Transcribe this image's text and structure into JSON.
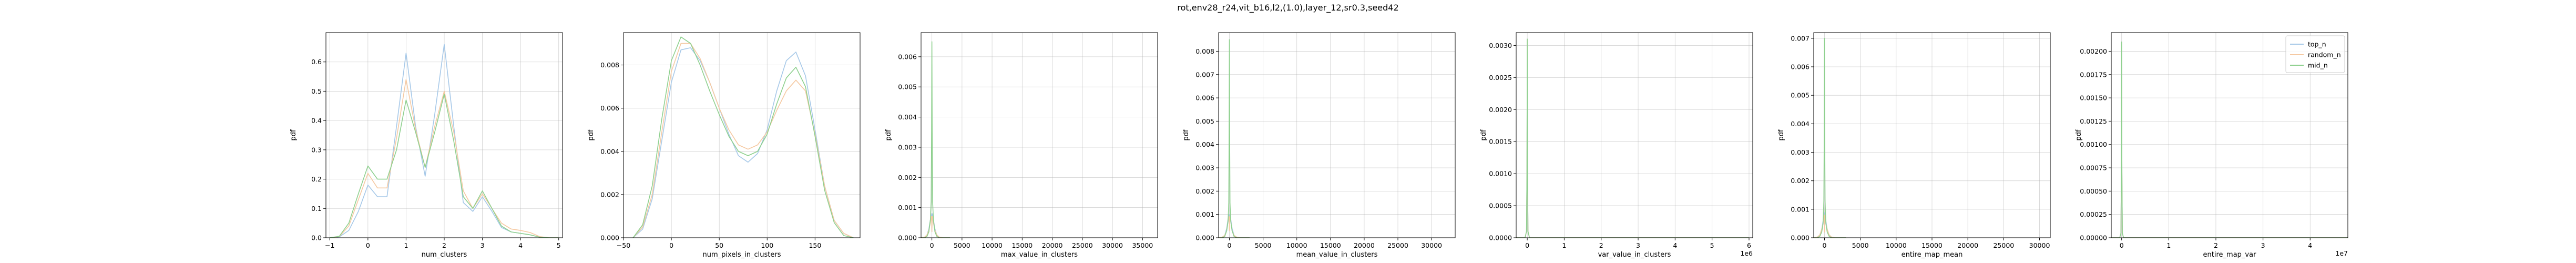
{
  "figure": {
    "suptitle": "rot,env28_r24,vit_b16,l2,(1.0),layer_12,sr0.3,seed42",
    "background": "#ffffff"
  },
  "series_styles": [
    {
      "name": "top_n",
      "color": "#a6c8e8"
    },
    {
      "name": "random_n",
      "color": "#f5c9a2"
    },
    {
      "name": "mid_n",
      "color": "#8ed08e"
    }
  ],
  "chart_data": [
    {
      "type": "line",
      "xlabel": "num_clusters",
      "ylabel": "pdf",
      "xlim": [
        -1.1,
        5.1
      ],
      "ylim": [
        0,
        0.7
      ],
      "xticks": [
        -1,
        0,
        1,
        2,
        3,
        4,
        5
      ],
      "xtick_labels": [
        "−1",
        "0",
        "1",
        "2",
        "3",
        "4",
        "5"
      ],
      "yticks": [
        0,
        0.1,
        0.2,
        0.3,
        0.4,
        0.5,
        0.6
      ],
      "ytick_labels": [
        "0.0",
        "0.1",
        "0.2",
        "0.3",
        "0.4",
        "0.5",
        "0.6"
      ],
      "x": [
        -1.0,
        -0.75,
        -0.5,
        -0.25,
        0.0,
        0.25,
        0.5,
        0.75,
        1.0,
        1.25,
        1.5,
        1.75,
        2.0,
        2.25,
        2.5,
        2.75,
        3.0,
        3.25,
        3.5,
        3.75,
        4.0,
        4.25,
        4.5,
        4.75,
        5.0
      ],
      "series": [
        {
          "name": "top_n",
          "values": [
            0.0,
            0.003,
            0.025,
            0.09,
            0.18,
            0.14,
            0.14,
            0.38,
            0.63,
            0.38,
            0.21,
            0.42,
            0.66,
            0.38,
            0.12,
            0.09,
            0.14,
            0.09,
            0.035,
            0.02,
            0.015,
            0.01,
            0.002,
            0.0,
            0.0
          ]
        },
        {
          "name": "random_n",
          "values": [
            0.0,
            0.004,
            0.04,
            0.13,
            0.22,
            0.17,
            0.17,
            0.34,
            0.54,
            0.37,
            0.24,
            0.38,
            0.5,
            0.36,
            0.16,
            0.1,
            0.15,
            0.1,
            0.05,
            0.03,
            0.025,
            0.018,
            0.004,
            0.0,
            0.0
          ]
        },
        {
          "name": "mid_n",
          "values": [
            0.0,
            0.005,
            0.05,
            0.15,
            0.245,
            0.2,
            0.2,
            0.3,
            0.47,
            0.36,
            0.24,
            0.36,
            0.49,
            0.33,
            0.14,
            0.1,
            0.16,
            0.1,
            0.04,
            0.02,
            0.015,
            0.01,
            0.002,
            0.0,
            0.0
          ]
        }
      ]
    },
    {
      "type": "line",
      "xlabel": "num_pixels_in_clusters",
      "ylabel": "pdf",
      "xlim": [
        -50,
        197
      ],
      "ylim": [
        0,
        0.0095
      ],
      "xticks": [
        -50,
        0,
        50,
        100,
        150
      ],
      "xtick_labels": [
        "−50",
        "0",
        "50",
        "100",
        "150"
      ],
      "yticks": [
        0,
        0.002,
        0.004,
        0.006,
        0.008
      ],
      "ytick_labels": [
        "0.000",
        "0.002",
        "0.004",
        "0.006",
        "0.008"
      ],
      "x": [
        -40,
        -30,
        -20,
        -10,
        0,
        10,
        20,
        30,
        40,
        50,
        60,
        70,
        80,
        90,
        100,
        110,
        120,
        130,
        140,
        150,
        160,
        170,
        180,
        190
      ],
      "series": [
        {
          "name": "top_n",
          "values": [
            0.0,
            0.0004,
            0.0018,
            0.0045,
            0.0072,
            0.0087,
            0.0088,
            0.0082,
            0.0072,
            0.006,
            0.0048,
            0.0038,
            0.0035,
            0.0039,
            0.005,
            0.0068,
            0.0082,
            0.0086,
            0.0075,
            0.005,
            0.0024,
            0.0008,
            0.0002,
            0.0
          ]
        },
        {
          "name": "random_n",
          "values": [
            0.0,
            0.0005,
            0.002,
            0.0049,
            0.0077,
            0.009,
            0.009,
            0.0083,
            0.0072,
            0.006,
            0.005,
            0.0043,
            0.0041,
            0.0043,
            0.0049,
            0.0059,
            0.0068,
            0.0073,
            0.0068,
            0.0048,
            0.0024,
            0.0008,
            0.0002,
            0.0
          ]
        },
        {
          "name": "mid_n",
          "values": [
            0.0,
            0.0006,
            0.0024,
            0.0055,
            0.0082,
            0.0093,
            0.009,
            0.008,
            0.0068,
            0.0057,
            0.0047,
            0.004,
            0.0038,
            0.004,
            0.0048,
            0.0062,
            0.0074,
            0.0079,
            0.007,
            0.0047,
            0.0022,
            0.0007,
            0.0001,
            0.0
          ]
        }
      ]
    },
    {
      "type": "line",
      "xlabel": "max_value_in_clusters",
      "ylabel": "pdf",
      "xlim": [
        -1800,
        37500
      ],
      "ylim": [
        0,
        0.0068
      ],
      "xticks": [
        0,
        5000,
        10000,
        15000,
        20000,
        25000,
        30000,
        35000
      ],
      "xtick_labels": [
        "0",
        "5000",
        "10000",
        "15000",
        "20000",
        "25000",
        "30000",
        "35000"
      ],
      "yticks": [
        0,
        0.001,
        0.002,
        0.003,
        0.004,
        0.005,
        0.006
      ],
      "ytick_labels": [
        "0.000",
        "0.001",
        "0.002",
        "0.003",
        "0.004",
        "0.005",
        "0.006"
      ],
      "x": [
        -1800,
        -1200,
        -800,
        -500,
        -250,
        -120,
        -50,
        0,
        50,
        120,
        250,
        500,
        800,
        1200,
        1800,
        3000
      ],
      "series": [
        {
          "name": "top_n",
          "values": [
            0.0,
            2e-05,
            0.0001,
            0.0003,
            0.0006,
            0.0008,
            0.0007,
            0.0002,
            0.0007,
            0.0008,
            0.0006,
            0.0003,
            0.0001,
            2e-05,
            0.0,
            0.0
          ]
        },
        {
          "name": "random_n",
          "values": [
            0.0,
            2e-05,
            0.0001,
            0.00025,
            0.0005,
            0.0007,
            0.0007,
            0.0002,
            0.0007,
            0.0007,
            0.0005,
            0.00025,
            0.0001,
            2e-05,
            0.0,
            0.0
          ]
        },
        {
          "name": "mid_n",
          "values": [
            0.0,
            0.0,
            5e-05,
            0.0002,
            0.0006,
            0.0012,
            0.0035,
            0.0065,
            0.0035,
            0.0012,
            0.0006,
            0.0002,
            5e-05,
            0.0,
            0.0,
            0.0
          ]
        }
      ]
    },
    {
      "type": "line",
      "xlabel": "mean_value_in_clusters",
      "ylabel": "pdf",
      "xlim": [
        -1600,
        33500
      ],
      "ylim": [
        0,
        0.0088
      ],
      "xticks": [
        0,
        5000,
        10000,
        15000,
        20000,
        25000,
        30000
      ],
      "xtick_labels": [
        "0",
        "5000",
        "10000",
        "15000",
        "20000",
        "25000",
        "30000"
      ],
      "yticks": [
        0,
        0.001,
        0.002,
        0.003,
        0.004,
        0.005,
        0.006,
        0.007,
        0.008
      ],
      "ytick_labels": [
        "0.000",
        "0.001",
        "0.002",
        "0.003",
        "0.004",
        "0.005",
        "0.006",
        "0.007",
        "0.008"
      ],
      "x": [
        -1600,
        -1100,
        -700,
        -400,
        -200,
        -90,
        -40,
        0,
        40,
        90,
        200,
        400,
        700,
        1100,
        1600,
        3000
      ],
      "series": [
        {
          "name": "top_n",
          "values": [
            0.0,
            2e-05,
            0.0001,
            0.0004,
            0.0008,
            0.001,
            0.0009,
            0.0003,
            0.0009,
            0.001,
            0.0008,
            0.0004,
            0.0001,
            2e-05,
            0.0,
            0.0
          ]
        },
        {
          "name": "random_n",
          "values": [
            0.0,
            2e-05,
            0.0001,
            0.0003,
            0.0007,
            0.0009,
            0.0009,
            0.0003,
            0.0009,
            0.0009,
            0.0007,
            0.0003,
            0.0001,
            2e-05,
            0.0,
            0.0
          ]
        },
        {
          "name": "mid_n",
          "values": [
            0.0,
            0.0,
            5e-05,
            0.0003,
            0.0007,
            0.0015,
            0.0045,
            0.0085,
            0.0045,
            0.0015,
            0.0007,
            0.0003,
            5e-05,
            0.0,
            0.0,
            0.0
          ]
        }
      ]
    },
    {
      "type": "line",
      "xlabel": "var_value_in_clusters",
      "ylabel": "pdf",
      "offset_label": "1e6",
      "xlim": [
        -0.3,
        6.1
      ],
      "ylim": [
        0,
        0.0032
      ],
      "xticks": [
        0,
        1,
        2,
        3,
        4,
        5,
        6
      ],
      "xtick_labels": [
        "0",
        "1",
        "2",
        "3",
        "4",
        "5",
        "6"
      ],
      "yticks": [
        0,
        0.0005,
        0.001,
        0.0015,
        0.002,
        0.0025,
        0.003
      ],
      "ytick_labels": [
        "0.0000",
        "0.0005",
        "0.0010",
        "0.0015",
        "0.0020",
        "0.0025",
        "0.0030"
      ],
      "x": [
        -0.3,
        -0.06,
        -0.02,
        -0.008,
        0.0,
        0.008,
        0.02,
        0.06,
        0.3,
        6.0
      ],
      "series": [
        {
          "name": "top_n",
          "values": [
            0.0,
            0.0,
            0.0001,
            0.001,
            0.0031,
            0.001,
            0.0001,
            0.0,
            0.0,
            0.0
          ]
        },
        {
          "name": "random_n",
          "values": [
            0.0,
            0.0,
            0.0001,
            0.001,
            0.0031,
            0.001,
            0.0001,
            0.0,
            0.0,
            0.0
          ]
        },
        {
          "name": "mid_n",
          "values": [
            0.0,
            0.0,
            0.0001,
            0.001,
            0.0031,
            0.001,
            0.0001,
            0.0,
            0.0,
            0.0
          ]
        }
      ]
    },
    {
      "type": "line",
      "xlabel": "entire_map_mean",
      "ylabel": "pdf",
      "xlim": [
        -1500,
        31500
      ],
      "ylim": [
        0,
        0.0072
      ],
      "xticks": [
        0,
        5000,
        10000,
        15000,
        20000,
        25000,
        30000
      ],
      "xtick_labels": [
        "0",
        "5000",
        "10000",
        "15000",
        "20000",
        "25000",
        "30000"
      ],
      "yticks": [
        0,
        0.001,
        0.002,
        0.003,
        0.004,
        0.005,
        0.006,
        0.007
      ],
      "ytick_labels": [
        "0.000",
        "0.001",
        "0.002",
        "0.003",
        "0.004",
        "0.005",
        "0.006",
        "0.007"
      ],
      "x": [
        -1500,
        -1000,
        -650,
        -380,
        -190,
        -85,
        -35,
        0,
        35,
        85,
        190,
        380,
        650,
        1000,
        1500,
        3000
      ],
      "series": [
        {
          "name": "top_n",
          "values": [
            0.0,
            2e-05,
            0.0001,
            0.0003,
            0.0006,
            0.0009,
            0.0008,
            0.0002,
            0.0008,
            0.0009,
            0.0006,
            0.0003,
            0.0001,
            2e-05,
            0.0,
            0.0
          ]
        },
        {
          "name": "random_n",
          "values": [
            0.0,
            2e-05,
            0.0001,
            0.0003,
            0.0005,
            0.0008,
            0.0008,
            0.0002,
            0.0008,
            0.0008,
            0.0005,
            0.0003,
            0.0001,
            2e-05,
            0.0,
            0.0
          ]
        },
        {
          "name": "mid_n",
          "values": [
            0.0,
            0.0,
            5e-05,
            0.0002,
            0.0005,
            0.0013,
            0.0037,
            0.007,
            0.0037,
            0.0013,
            0.0005,
            0.0002,
            5e-05,
            0.0,
            0.0,
            0.0
          ]
        }
      ]
    },
    {
      "type": "line",
      "xlabel": "entire_map_var",
      "ylabel": "pdf",
      "offset_label": "1e7",
      "xlim": [
        -0.22,
        4.8
      ],
      "ylim": [
        0,
        0.0022
      ],
      "xticks": [
        0,
        1,
        2,
        3,
        4
      ],
      "xtick_labels": [
        "0",
        "1",
        "2",
        "3",
        "4"
      ],
      "yticks": [
        0,
        0.00025,
        0.0005,
        0.00075,
        0.001,
        0.00125,
        0.0015,
        0.00175,
        0.002
      ],
      "ytick_labels": [
        "0.00000",
        "0.00025",
        "0.00050",
        "0.00075",
        "0.00100",
        "0.00125",
        "0.00150",
        "0.00175",
        "0.00200"
      ],
      "x": [
        -0.22,
        -0.04,
        -0.015,
        -0.006,
        0.0,
        0.006,
        0.015,
        0.04,
        0.22,
        4.8
      ],
      "series": [
        {
          "name": "top_n",
          "values": [
            0.0,
            0.0,
            5e-05,
            0.0007,
            0.0021,
            0.0007,
            5e-05,
            0.0,
            0.0,
            0.0
          ]
        },
        {
          "name": "random_n",
          "values": [
            0.0,
            0.0,
            5e-05,
            0.0007,
            0.0021,
            0.0007,
            5e-05,
            0.0,
            0.0,
            0.0
          ]
        },
        {
          "name": "mid_n",
          "values": [
            0.0,
            0.0,
            5e-05,
            0.0007,
            0.0021,
            0.0007,
            5e-05,
            0.0,
            0.0,
            0.0
          ]
        }
      ],
      "legend": {
        "placement": "top-right",
        "entries": [
          "top_n",
          "random_n",
          "mid_n"
        ]
      }
    }
  ]
}
